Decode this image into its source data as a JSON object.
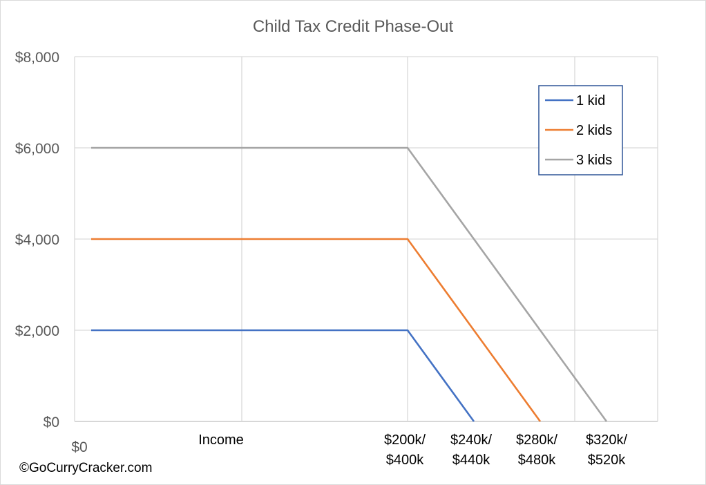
{
  "chart_data": {
    "type": "line",
    "title": "Child Tax Credit Phase-Out",
    "xlabel": "",
    "ylabel": "",
    "x_tick_labels": [
      {
        "x": 0,
        "lines": [
          "$0"
        ]
      },
      {
        "x": 100,
        "lines": [
          "Income"
        ]
      },
      {
        "x": 200,
        "lines": [
          "$200k/",
          "$400k"
        ]
      },
      {
        "x": 240,
        "lines": [
          "$240k/",
          "$440k"
        ]
      },
      {
        "x": 280,
        "lines": [
          "$280k/",
          "$480k"
        ]
      },
      {
        "x": 320,
        "lines": [
          "$320k/",
          "$520k"
        ]
      }
    ],
    "x_gridlines": [
      100,
      200,
      300
    ],
    "xlim": [
      -10,
      340
    ],
    "ylim": [
      0,
      8000
    ],
    "y_ticks": [
      0,
      2000,
      4000,
      6000,
      8000
    ],
    "y_tick_labels": [
      "$0",
      "$2,000",
      "$4,000",
      "$6,000",
      "$8,000"
    ],
    "grid": true,
    "legend_position": "top-right",
    "series": [
      {
        "name": "1 kid",
        "color": "#4472C4",
        "points": [
          [
            0,
            2000
          ],
          [
            200,
            2000
          ],
          [
            240,
            0
          ]
        ]
      },
      {
        "name": "2 kids",
        "color": "#ED7D31",
        "points": [
          [
            0,
            4000
          ],
          [
            200,
            4000
          ],
          [
            280,
            0
          ]
        ]
      },
      {
        "name": "3 kids",
        "color": "#A5A5A5",
        "points": [
          [
            0,
            6000
          ],
          [
            200,
            6000
          ],
          [
            320,
            0
          ]
        ]
      }
    ]
  },
  "credit": "©GoCurryCracker.com",
  "colors": {
    "grid": "#D9D9D9",
    "legend_border": "#2F5597"
  }
}
